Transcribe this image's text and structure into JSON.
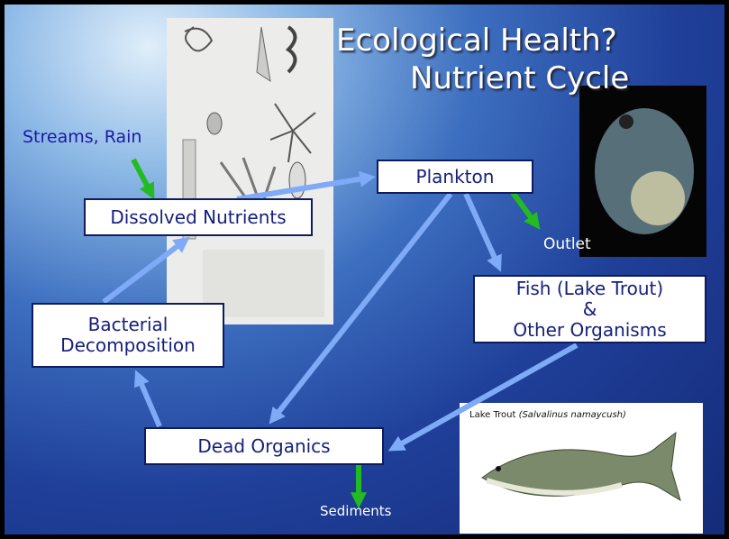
{
  "title_lines": [
    "Ecological Health?",
    "Nutrient Cycle"
  ],
  "nodes": [
    {
      "lines": [
        "Dissolved Nutrients"
      ]
    },
    {
      "lines": [
        "Plankton"
      ]
    },
    {
      "lines": [
        "Fish (Lake Trout)",
        "&",
        "Other Organisms"
      ]
    },
    {
      "lines": [
        "Bacterial",
        "Decomposition"
      ]
    },
    {
      "lines": [
        "Dead Organics"
      ]
    }
  ],
  "labels": {
    "input": "Streams, Rain",
    "outlet": "Outlet",
    "sediments": "Sediments"
  },
  "photo_caption": {
    "name": "Lake Trout",
    "species": "(Salvalinus namaycush)"
  }
}
